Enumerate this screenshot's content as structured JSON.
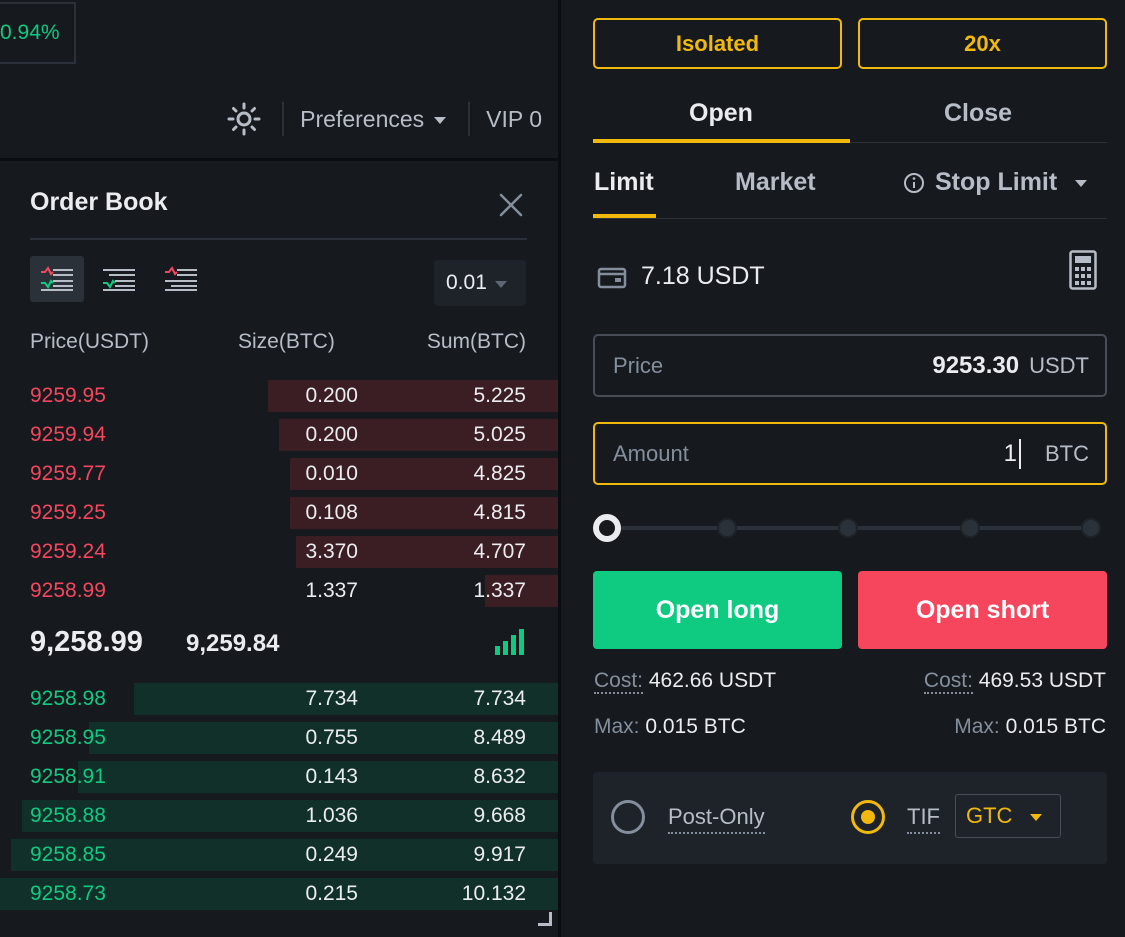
{
  "header": {
    "change_pct": "0.94%",
    "preferences_label": "Preferences",
    "vip_label": "VIP 0"
  },
  "order_book": {
    "title": "Order Book",
    "precision": "0.01",
    "columns": {
      "price": "Price(USDT)",
      "size": "Size(BTC)",
      "sum": "Sum(BTC)"
    },
    "asks": [
      {
        "price": "9259.95",
        "size": "0.200",
        "sum": "5.225",
        "depth": 0.52
      },
      {
        "price": "9259.94",
        "size": "0.200",
        "sum": "5.025",
        "depth": 0.5
      },
      {
        "price": "9259.77",
        "size": "0.010",
        "sum": "4.825",
        "depth": 0.48
      },
      {
        "price": "9259.25",
        "size": "0.108",
        "sum": "4.815",
        "depth": 0.48
      },
      {
        "price": "9259.24",
        "size": "3.370",
        "sum": "4.707",
        "depth": 0.47
      },
      {
        "price": "9258.99",
        "size": "1.337",
        "sum": "1.337",
        "depth": 0.13
      }
    ],
    "last_price": "9,258.99",
    "mark_price": "9,259.84",
    "bids": [
      {
        "price": "9258.98",
        "size": "7.734",
        "sum": "7.734",
        "depth": 0.76
      },
      {
        "price": "9258.95",
        "size": "0.755",
        "sum": "8.489",
        "depth": 0.84
      },
      {
        "price": "9258.91",
        "size": "0.143",
        "sum": "8.632",
        "depth": 0.86
      },
      {
        "price": "9258.88",
        "size": "1.036",
        "sum": "9.668",
        "depth": 0.96
      },
      {
        "price": "9258.85",
        "size": "0.249",
        "sum": "9.917",
        "depth": 0.98
      },
      {
        "price": "9258.73",
        "size": "0.215",
        "sum": "10.132",
        "depth": 1.0
      }
    ]
  },
  "trade": {
    "margin_mode": "Isolated",
    "leverage": "20x",
    "tabs": {
      "open": "Open",
      "close": "Close"
    },
    "order_types": {
      "limit": "Limit",
      "market": "Market",
      "stop_limit": "Stop Limit"
    },
    "balance": "7.18 USDT",
    "price": {
      "placeholder": "Price",
      "value": "9253.30",
      "unit": "USDT"
    },
    "amount": {
      "placeholder": "Amount",
      "value": "1",
      "unit": "BTC"
    },
    "slider_level": 0,
    "buttons": {
      "long": "Open long",
      "short": "Open short"
    },
    "long_info": {
      "cost_label": "Cost:",
      "cost": "462.66 USDT",
      "max_label": "Max:",
      "max": "0.015 BTC"
    },
    "short_info": {
      "cost_label": "Cost:",
      "cost": "469.53 USDT",
      "max_label": "Max:",
      "max": "0.015 BTC"
    },
    "options": {
      "post_only": "Post-Only",
      "tif_label": "TIF",
      "tif_value": "GTC"
    }
  },
  "colors": {
    "accent": "#f0b90b",
    "buy": "#0ecb81",
    "sell": "#f6465d"
  }
}
